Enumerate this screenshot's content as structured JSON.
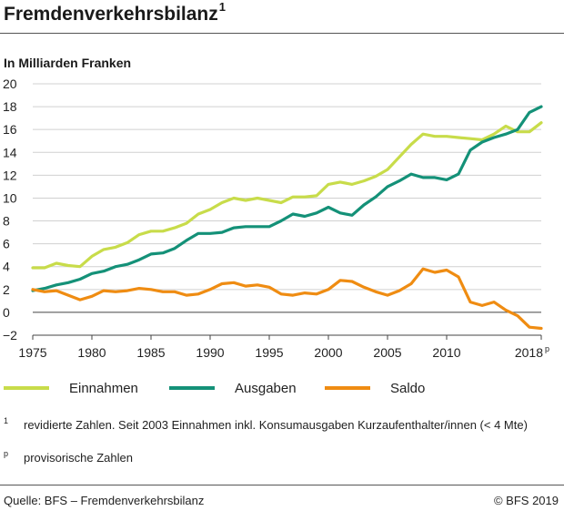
{
  "header": {
    "title": "Fremdenverkehrsbilanz",
    "title_note": "1"
  },
  "chart_data": {
    "type": "line",
    "title": "Fremdenverkehrsbilanz",
    "ylabel": "In Milliarden Franken",
    "xlabel": "",
    "x_ticks": [
      "1975",
      "1980",
      "1985",
      "1990",
      "1995",
      "2000",
      "2005",
      "2010",
      "2018"
    ],
    "x_last_tick_suffix": "p",
    "y_ticks": [
      "20",
      "18",
      "16",
      "14",
      "12",
      "10",
      "8",
      "6",
      "4",
      "2",
      "0",
      "−2"
    ],
    "xlim": [
      1975,
      2018
    ],
    "ylim": [
      -2,
      20
    ],
    "grid": "horizontal",
    "legend_position": "bottom",
    "x": [
      1975,
      1976,
      1977,
      1978,
      1979,
      1980,
      1981,
      1982,
      1983,
      1984,
      1985,
      1986,
      1987,
      1988,
      1989,
      1990,
      1991,
      1992,
      1993,
      1994,
      1995,
      1996,
      1997,
      1998,
      1999,
      2000,
      2001,
      2002,
      2003,
      2004,
      2005,
      2006,
      2007,
      2008,
      2009,
      2010,
      2011,
      2012,
      2013,
      2014,
      2015,
      2016,
      2017,
      2018
    ],
    "series": [
      {
        "name": "Einnahmen",
        "color": "#c8dc4a",
        "values": [
          3.9,
          3.9,
          4.3,
          4.1,
          4.0,
          4.9,
          5.5,
          5.7,
          6.1,
          6.8,
          7.1,
          7.1,
          7.4,
          7.8,
          8.6,
          9.0,
          9.6,
          10.0,
          9.8,
          10.0,
          9.8,
          9.6,
          10.1,
          10.1,
          10.2,
          11.2,
          11.4,
          11.2,
          11.5,
          11.9,
          12.5,
          13.6,
          14.7,
          15.6,
          15.4,
          15.4,
          15.3,
          15.2,
          15.1,
          15.6,
          16.3,
          15.8,
          15.8,
          16.6
        ]
      },
      {
        "name": "Ausgaben",
        "color": "#149178",
        "values": [
          1.9,
          2.1,
          2.4,
          2.6,
          2.9,
          3.4,
          3.6,
          4.0,
          4.2,
          4.6,
          5.1,
          5.2,
          5.6,
          6.3,
          6.9,
          6.9,
          7.0,
          7.4,
          7.5,
          7.5,
          7.5,
          8.0,
          8.6,
          8.4,
          8.7,
          9.2,
          8.7,
          8.5,
          9.4,
          10.1,
          11.0,
          11.5,
          12.1,
          11.8,
          11.8,
          11.6,
          12.1,
          14.2,
          14.9,
          15.3,
          15.6,
          16.0,
          17.5,
          18.0
        ]
      },
      {
        "name": "Saldo",
        "color": "#ef8c12",
        "values": [
          2.0,
          1.8,
          1.9,
          1.5,
          1.1,
          1.4,
          1.9,
          1.8,
          1.9,
          2.1,
          2.0,
          1.8,
          1.8,
          1.5,
          1.6,
          2.0,
          2.5,
          2.6,
          2.3,
          2.4,
          2.2,
          1.6,
          1.5,
          1.7,
          1.6,
          2.0,
          2.8,
          2.7,
          2.2,
          1.8,
          1.5,
          1.9,
          2.5,
          3.8,
          3.5,
          3.7,
          3.1,
          0.9,
          0.6,
          0.9,
          0.2,
          -0.3,
          -1.3,
          -1.4
        ]
      }
    ]
  },
  "footnotes": [
    {
      "mark": "1",
      "text": "revidierte Zahlen. Seit 2003 Einnahmen inkl. Konsumausgaben Kurzaufenthalter/innen (< 4 Mte)"
    },
    {
      "mark": "p",
      "text": "provisorische Zahlen"
    }
  ],
  "footer": {
    "source": "Quelle: BFS – Fremdenverkehrsbilanz",
    "copyright": "© BFS 2019"
  }
}
